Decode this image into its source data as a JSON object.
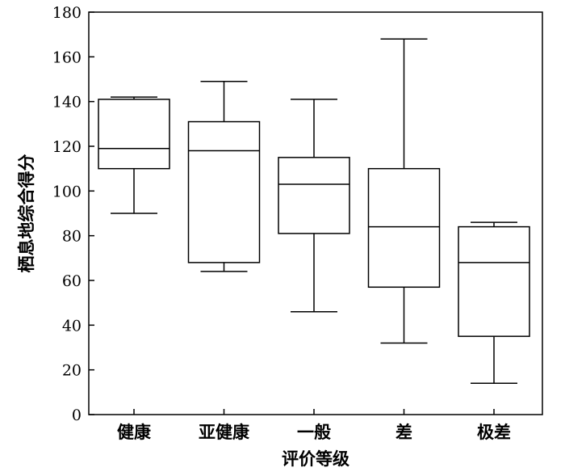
{
  "chart_data": {
    "type": "boxplot",
    "xlabel": "评价等级",
    "ylabel": "栖息地综合得分",
    "ylim": [
      0,
      180
    ],
    "yticks": [
      0,
      20,
      40,
      60,
      80,
      100,
      120,
      140,
      160,
      180
    ],
    "grid": false,
    "categories": [
      "健康",
      "亚健康",
      "一般",
      "差",
      "极差"
    ],
    "boxes": [
      {
        "category": "健康",
        "min": 90,
        "q1": 110,
        "median": 119,
        "q3": 141,
        "max": 142
      },
      {
        "category": "亚健康",
        "min": 64,
        "q1": 68,
        "median": 118,
        "q3": 131,
        "max": 149
      },
      {
        "category": "一般",
        "min": 46,
        "q1": 81,
        "median": 103,
        "q3": 115,
        "max": 141
      },
      {
        "category": "差",
        "min": 32,
        "q1": 57,
        "median": 84,
        "q3": 110,
        "max": 168
      },
      {
        "category": "极差",
        "min": 14,
        "q1": 35,
        "median": 68,
        "q3": 84,
        "max": 86
      }
    ],
    "colors": {
      "stroke": "#000000",
      "fill": "#ffffff"
    }
  }
}
